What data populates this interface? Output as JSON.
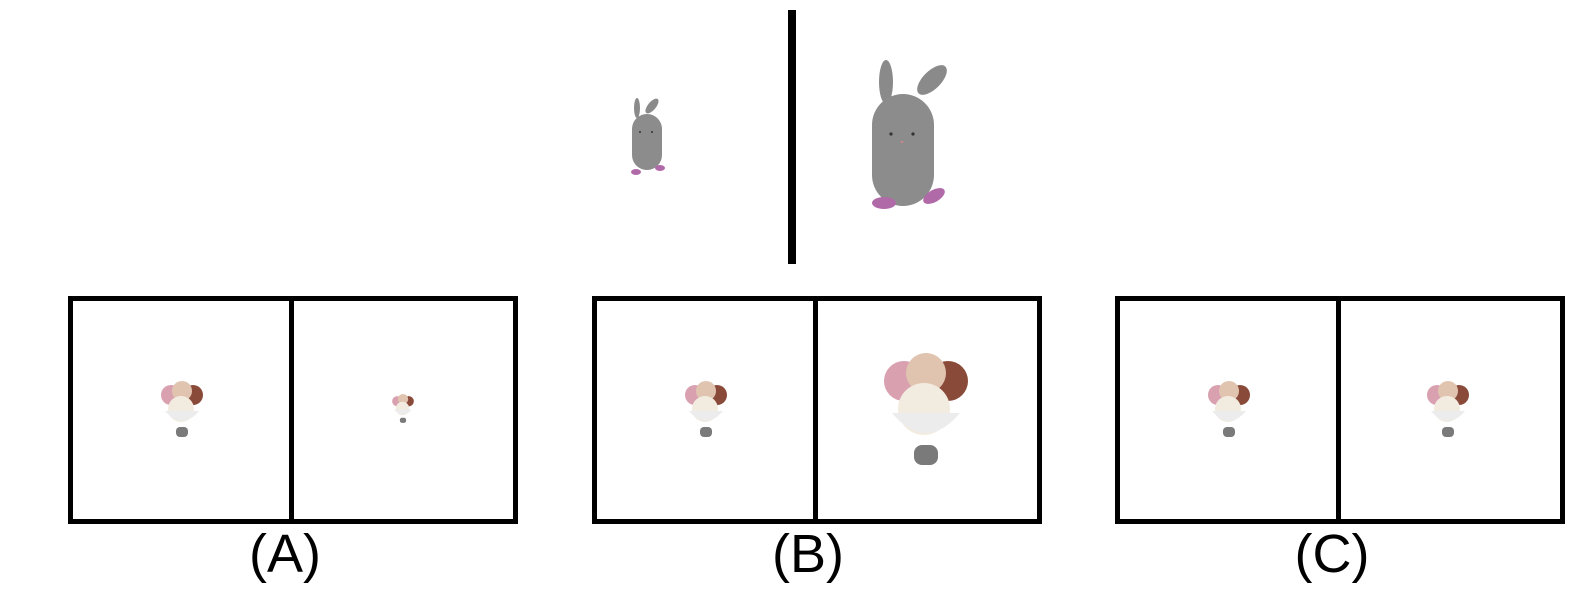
{
  "reference": {
    "left_object": "bunny-small",
    "right_object": "bunny-large",
    "bunny_color": "#8a8a8a",
    "feet_color": "#b06aa8"
  },
  "options": [
    {
      "label": "(A)",
      "left_object": "ice-cream-sundae",
      "right_object": "ice-cream-sundae-smaller"
    },
    {
      "label": "(B)",
      "left_object": "ice-cream-sundae",
      "right_object": "ice-cream-sundae-larger"
    },
    {
      "label": "(C)",
      "left_object": "ice-cream-sundae",
      "right_object": "ice-cream-sundae-same"
    }
  ]
}
